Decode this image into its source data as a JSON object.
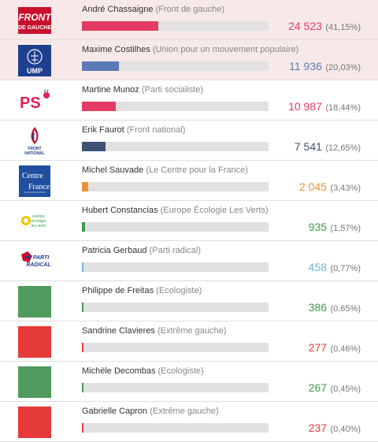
{
  "candidates": [
    {
      "name": "André Chassaigne",
      "party": "(Front de gauche)",
      "votes": "24 523",
      "pct": "(41,15%)",
      "share": 0.4115,
      "color": "#e33b63",
      "logo": "front-de-gauche-logo",
      "logo_text": [
        "FRONT",
        "DE GAUCHE"
      ],
      "highlight": true
    },
    {
      "name": "Maxime Costilhes",
      "party": "(Union pour un mouvement populaire)",
      "votes": "11 936",
      "pct": "(20,03%)",
      "share": 0.2003,
      "color": "#5b7ab8",
      "logo": "ump-logo",
      "logo_text": [
        "UMP"
      ],
      "highlight": true
    },
    {
      "name": "Martine Munoz",
      "party": "(Parti socialiste)",
      "votes": "10 987",
      "pct": "(18,44%)",
      "share": 0.1844,
      "color": "#e33b63",
      "logo": "ps-logo",
      "logo_text": [
        "PS"
      ],
      "highlight": false
    },
    {
      "name": "Erik Faurot",
      "party": "(Front national)",
      "votes": "7 541",
      "pct": "(12,65%)",
      "share": 0.1265,
      "color": "#3f5272",
      "logo": "front-national-logo",
      "logo_text": [
        "FRONT",
        "NATIONAL"
      ],
      "highlight": false
    },
    {
      "name": "Michel Sauvade",
      "party": "(Le Centre pour la France)",
      "votes": "2 045",
      "pct": "(3,43%)",
      "share": 0.0343,
      "color": "#e8913a",
      "logo": "centre-pour-la-france-logo",
      "logo_text": [
        "Centre",
        "France"
      ],
      "highlight": false
    },
    {
      "name": "Hubert Constancias",
      "party": "(Europe Écologie Les Verts)",
      "votes": "935",
      "pct": "(1,57%)",
      "share": 0.0157,
      "color": "#3a9b4a",
      "logo": "eelv-logo",
      "logo_text": [
        "europe",
        "écologie",
        "les verts"
      ],
      "highlight": false
    },
    {
      "name": "Patricia Gerbaud",
      "party": "(Parti radical)",
      "votes": "458",
      "pct": "(0,77%)",
      "share": 0.0077,
      "color": "#6cb5e0",
      "logo": "parti-radical-logo",
      "logo_text": [
        "PARTI",
        "RADICAL"
      ],
      "highlight": false
    },
    {
      "name": "Philippe de Freitas",
      "party": "(Ecologiste)",
      "votes": "386",
      "pct": "(0,65%)",
      "share": 0.0065,
      "color": "#3a9b4a",
      "logo": "green-square",
      "logo_text": [],
      "highlight": false
    },
    {
      "name": "Sandrine Clavieres",
      "party": "(Extrême gauche)",
      "votes": "277",
      "pct": "(0,46%)",
      "share": 0.0046,
      "color": "#e33b3b",
      "logo": "red-square",
      "logo_text": [],
      "highlight": false
    },
    {
      "name": "Michèle Decombas",
      "party": "(Ecologiste)",
      "votes": "267",
      "pct": "(0,45%)",
      "share": 0.0045,
      "color": "#3a9b4a",
      "logo": "green-square",
      "logo_text": [],
      "highlight": false
    },
    {
      "name": "Gabrielle Capron",
      "party": "(Extrême gauche)",
      "votes": "237",
      "pct": "(0,40%)",
      "share": 0.004,
      "color": "#e33b3b",
      "logo": "red-square",
      "logo_text": [],
      "highlight": false
    }
  ]
}
